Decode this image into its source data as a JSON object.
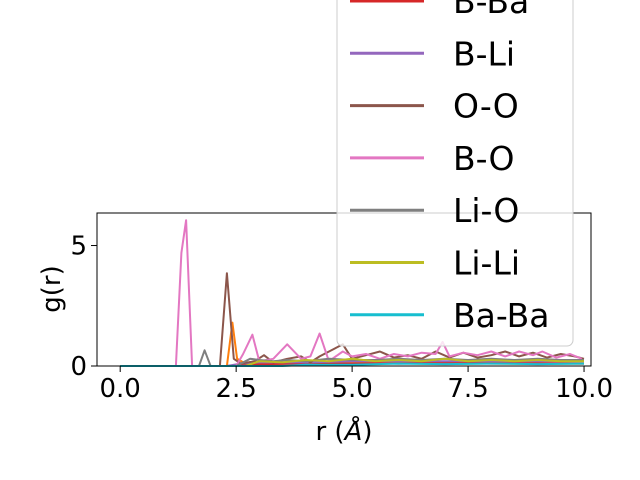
{
  "chart_data": {
    "type": "line",
    "title": "",
    "xlabel": "r (Å)",
    "ylabel": "g(r)",
    "xlim": [
      -0.5,
      10.15
    ],
    "ylim": [
      0,
      6.35
    ],
    "xticks": [
      0.0,
      2.5,
      5.0,
      7.5,
      10.0
    ],
    "xtick_labels": [
      "0.0",
      "2.5",
      "5.0",
      "7.5",
      "10.0"
    ],
    "yticks": [
      0,
      5
    ],
    "ytick_labels": [
      "0",
      "5"
    ],
    "grid": false,
    "legend_position": "upper-right",
    "series": [
      {
        "name": "B-Ba",
        "color": "#d62728",
        "points": [
          [
            0,
            0
          ],
          [
            2.3,
            0
          ],
          [
            2.6,
            0.05
          ],
          [
            3,
            0.08
          ],
          [
            4,
            0.1
          ],
          [
            5,
            0.1
          ],
          [
            6,
            0.12
          ],
          [
            7,
            0.12
          ],
          [
            8,
            0.12
          ],
          [
            9,
            0.12
          ],
          [
            10,
            0.1
          ]
        ]
      },
      {
        "name": "B-Li",
        "color": "#9467bd",
        "points": [
          [
            0,
            0
          ],
          [
            2.3,
            0
          ],
          [
            2.6,
            0.1
          ],
          [
            3,
            0.15
          ],
          [
            4,
            0.15
          ],
          [
            5,
            0.2
          ],
          [
            6,
            0.2
          ],
          [
            7,
            0.2
          ],
          [
            8,
            0.2
          ],
          [
            9,
            0.2
          ],
          [
            10,
            0.2
          ]
        ]
      },
      {
        "name": "O-O",
        "color": "#8c564b",
        "points": [
          [
            0,
            0
          ],
          [
            2.15,
            0
          ],
          [
            2.3,
            3.85
          ],
          [
            2.45,
            0.3
          ],
          [
            2.6,
            0.1
          ],
          [
            2.9,
            0.2
          ],
          [
            3.1,
            0.45
          ],
          [
            3.3,
            0.15
          ],
          [
            3.6,
            0.3
          ],
          [
            3.9,
            0.4
          ],
          [
            4.1,
            0.15
          ],
          [
            4.3,
            0.4
          ],
          [
            4.6,
            0.7
          ],
          [
            4.8,
            0.9
          ],
          [
            5.0,
            0.3
          ],
          [
            5.3,
            0.45
          ],
          [
            5.6,
            0.6
          ],
          [
            5.9,
            0.35
          ],
          [
            6.2,
            0.45
          ],
          [
            6.5,
            0.3
          ],
          [
            6.8,
            0.6
          ],
          [
            7.1,
            0.35
          ],
          [
            7.4,
            0.55
          ],
          [
            7.7,
            0.35
          ],
          [
            8.0,
            0.45
          ],
          [
            8.3,
            0.6
          ],
          [
            8.6,
            0.4
          ],
          [
            8.9,
            0.55
          ],
          [
            9.2,
            0.35
          ],
          [
            9.5,
            0.5
          ],
          [
            9.8,
            0.4
          ],
          [
            10.0,
            0.3
          ]
        ]
      },
      {
        "name": "B-O",
        "color": "#e377c2",
        "points": [
          [
            0,
            0
          ],
          [
            1.2,
            0
          ],
          [
            1.32,
            4.7
          ],
          [
            1.42,
            6.05
          ],
          [
            1.55,
            0
          ],
          [
            2.5,
            0
          ],
          [
            2.65,
            0.5
          ],
          [
            2.85,
            1.3
          ],
          [
            3.0,
            0.2
          ],
          [
            3.3,
            0.3
          ],
          [
            3.6,
            0.9
          ],
          [
            3.9,
            0.3
          ],
          [
            4.1,
            0.4
          ],
          [
            4.3,
            1.35
          ],
          [
            4.5,
            0.2
          ],
          [
            4.8,
            0.6
          ],
          [
            5.0,
            0.4
          ],
          [
            5.3,
            0.5
          ],
          [
            5.6,
            0.3
          ],
          [
            5.9,
            0.5
          ],
          [
            6.2,
            0.4
          ],
          [
            6.5,
            0.55
          ],
          [
            6.8,
            0.5
          ],
          [
            6.95,
            1.0
          ],
          [
            7.1,
            0.4
          ],
          [
            7.4,
            0.55
          ],
          [
            7.7,
            0.45
          ],
          [
            8.0,
            0.6
          ],
          [
            8.3,
            0.4
          ],
          [
            8.6,
            0.6
          ],
          [
            8.9,
            0.45
          ],
          [
            9.1,
            0.6
          ],
          [
            9.4,
            0.35
          ],
          [
            9.7,
            0.5
          ],
          [
            9.95,
            0.3
          ]
        ]
      },
      {
        "name": "Li-O",
        "color": "#7f7f7f",
        "points": [
          [
            0,
            0
          ],
          [
            1.7,
            0
          ],
          [
            1.82,
            0.65
          ],
          [
            1.95,
            0
          ],
          [
            2.5,
            0
          ],
          [
            2.8,
            0.3
          ],
          [
            3.0,
            0.25
          ],
          [
            3.3,
            0.2
          ],
          [
            3.6,
            0.25
          ],
          [
            4.0,
            0.2
          ],
          [
            4.5,
            0.3
          ],
          [
            5.0,
            0.25
          ],
          [
            5.5,
            0.25
          ],
          [
            6.0,
            0.3
          ],
          [
            6.5,
            0.25
          ],
          [
            7.0,
            0.3
          ],
          [
            7.5,
            0.25
          ],
          [
            8.0,
            0.3
          ],
          [
            8.5,
            0.25
          ],
          [
            9.0,
            0.3
          ],
          [
            9.5,
            0.25
          ],
          [
            10.0,
            0.25
          ]
        ]
      },
      {
        "name": "Li-Li",
        "color": "#bcbd22",
        "points": [
          [
            0,
            0
          ],
          [
            2.7,
            0
          ],
          [
            3.0,
            0.2
          ],
          [
            3.5,
            0.15
          ],
          [
            4.0,
            0.25
          ],
          [
            4.5,
            0.2
          ],
          [
            5.0,
            0.3
          ],
          [
            5.5,
            0.2
          ],
          [
            6.0,
            0.25
          ],
          [
            6.5,
            0.2
          ],
          [
            7.0,
            0.3
          ],
          [
            7.5,
            0.2
          ],
          [
            8.0,
            0.25
          ],
          [
            8.5,
            0.2
          ],
          [
            9.0,
            0.25
          ],
          [
            9.5,
            0.2
          ],
          [
            10.0,
            0.2
          ]
        ]
      },
      {
        "name": "Ba-Ba",
        "color": "#17becf",
        "points": [
          [
            0,
            0
          ],
          [
            3.5,
            0
          ],
          [
            4.0,
            0.05
          ],
          [
            5.0,
            0.05
          ],
          [
            6.0,
            0.1
          ],
          [
            7.0,
            0.08
          ],
          [
            8.0,
            0.1
          ],
          [
            9.0,
            0.08
          ],
          [
            10.0,
            0.1
          ]
        ]
      }
    ],
    "unlabeled_series": [
      {
        "color": "#ff7f0e",
        "points": [
          [
            0,
            0
          ],
          [
            2.3,
            0
          ],
          [
            2.42,
            1.8
          ],
          [
            2.52,
            0.3
          ],
          [
            2.7,
            0.1
          ],
          [
            3.0,
            0.1
          ],
          [
            4.0,
            0.1
          ],
          [
            5.0,
            0.15
          ],
          [
            6.0,
            0.1
          ],
          [
            7.0,
            0.15
          ],
          [
            8.0,
            0.1
          ],
          [
            9.0,
            0.1
          ],
          [
            10.0,
            0.1
          ]
        ]
      }
    ]
  }
}
